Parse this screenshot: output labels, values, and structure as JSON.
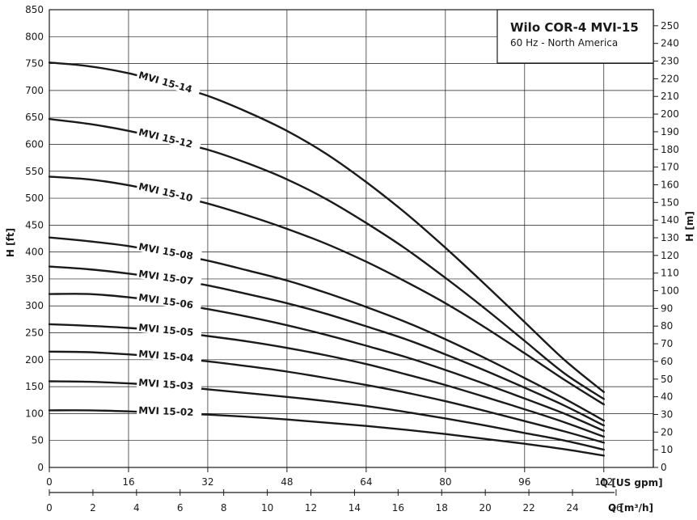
{
  "chart_data": {
    "type": "line",
    "title": "Wilo COR-4 MVI-15",
    "subtitle": "60 Hz - North America",
    "x_axis": {
      "label": "Q [US gpm]",
      "ticks": [
        0,
        16,
        32,
        48,
        64,
        80,
        96,
        112
      ],
      "range": [
        0,
        122
      ]
    },
    "x2_axis": {
      "label": "Q [m³/h]",
      "ticks": [
        0,
        2,
        4,
        6,
        8,
        10,
        12,
        14,
        16,
        18,
        20,
        22,
        24,
        26
      ]
    },
    "y_axis": {
      "label": "H [ft]",
      "ticks": [
        0,
        50,
        100,
        150,
        200,
        250,
        300,
        350,
        400,
        450,
        500,
        550,
        600,
        650,
        700,
        750,
        800,
        850
      ],
      "range": [
        0,
        850
      ]
    },
    "y2_axis": {
      "label": "H [m]",
      "ticks": [
        0,
        10,
        20,
        30,
        40,
        50,
        60,
        70,
        80,
        90,
        100,
        110,
        120,
        130,
        140,
        150,
        160,
        170,
        180,
        190,
        200,
        210,
        220,
        230,
        240,
        250
      ]
    },
    "grid": true,
    "legend_position": "top-right",
    "series": [
      {
        "name": "MVI 15-14",
        "x": [
          0,
          8,
          16,
          24,
          32,
          40,
          48,
          56,
          64,
          72,
          80,
          88,
          96,
          104,
          112
        ],
        "y": [
          752,
          745,
          732,
          712,
          690,
          660,
          625,
          582,
          530,
          472,
          408,
          340,
          270,
          200,
          140
        ]
      },
      {
        "name": "MVI 15-12",
        "x": [
          0,
          8,
          16,
          24,
          32,
          40,
          48,
          56,
          64,
          72,
          80,
          88,
          96,
          104,
          112
        ],
        "y": [
          647,
          638,
          625,
          608,
          590,
          565,
          535,
          498,
          454,
          406,
          352,
          295,
          235,
          175,
          127
        ]
      },
      {
        "name": "MVI 15-10",
        "x": [
          0,
          8,
          16,
          24,
          32,
          40,
          48,
          56,
          64,
          72,
          80,
          88,
          96,
          104,
          112
        ],
        "y": [
          540,
          535,
          524,
          508,
          490,
          468,
          443,
          415,
          382,
          345,
          305,
          260,
          212,
          163,
          117
        ]
      },
      {
        "name": "MVI 15-08",
        "x": [
          0,
          8,
          16,
          24,
          32,
          40,
          48,
          56,
          64,
          72,
          80,
          88,
          96,
          104,
          112
        ],
        "y": [
          427,
          420,
          411,
          398,
          384,
          366,
          347,
          324,
          298,
          270,
          238,
          203,
          166,
          128,
          87
        ]
      },
      {
        "name": "MVI 15-07",
        "x": [
          0,
          8,
          16,
          24,
          32,
          40,
          48,
          56,
          64,
          72,
          80,
          88,
          96,
          104,
          112
        ],
        "y": [
          373,
          368,
          360,
          350,
          338,
          322,
          305,
          285,
          262,
          238,
          210,
          180,
          148,
          115,
          78
        ]
      },
      {
        "name": "MVI 15-06",
        "x": [
          0,
          8,
          16,
          24,
          32,
          40,
          48,
          56,
          64,
          72,
          80,
          88,
          96,
          104,
          112
        ],
        "y": [
          322,
          322,
          316,
          306,
          294,
          280,
          264,
          246,
          226,
          205,
          181,
          155,
          128,
          100,
          68
        ]
      },
      {
        "name": "MVI 15-05",
        "x": [
          0,
          8,
          16,
          24,
          32,
          40,
          48,
          56,
          64,
          72,
          80,
          88,
          96,
          104,
          112
        ],
        "y": [
          266,
          263,
          259,
          253,
          244,
          234,
          222,
          208,
          192,
          173,
          153,
          131,
          108,
          84,
          57
        ]
      },
      {
        "name": "MVI 15-04",
        "x": [
          0,
          8,
          16,
          24,
          32,
          40,
          48,
          56,
          64,
          72,
          80,
          88,
          96,
          104,
          112
        ],
        "y": [
          215,
          214,
          210,
          204,
          197,
          188,
          178,
          166,
          153,
          139,
          123,
          105,
          86,
          67,
          46
        ]
      },
      {
        "name": "MVI 15-03",
        "x": [
          0,
          8,
          16,
          24,
          32,
          40,
          48,
          56,
          64,
          72,
          80,
          88,
          96,
          104,
          112
        ],
        "y": [
          160,
          159,
          156,
          152,
          145,
          138,
          131,
          123,
          114,
          103,
          91,
          78,
          64,
          50,
          33
        ]
      },
      {
        "name": "MVI 15-02",
        "x": [
          0,
          8,
          16,
          24,
          32,
          40,
          48,
          56,
          64,
          72,
          80,
          88,
          96,
          104,
          112
        ],
        "y": [
          106,
          106,
          104,
          101,
          98,
          94,
          89,
          83,
          77,
          70,
          62,
          53,
          44,
          34,
          22
        ]
      }
    ]
  }
}
